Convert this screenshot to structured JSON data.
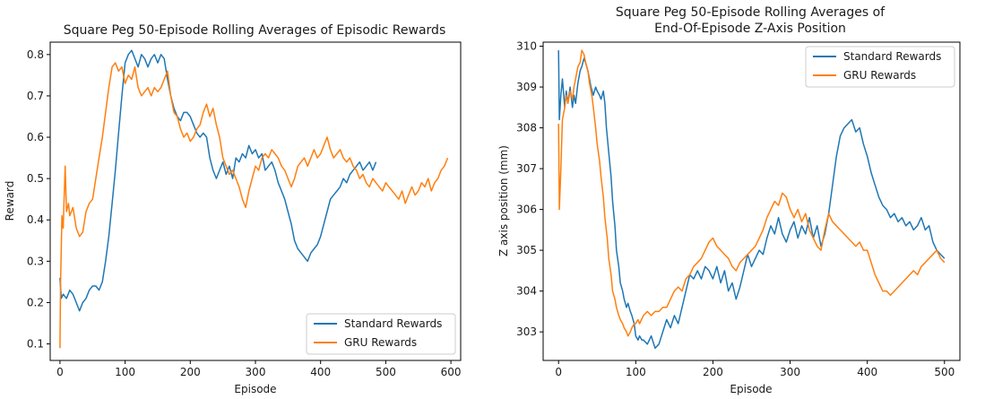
{
  "chart_data": [
    {
      "type": "line",
      "title": "Square Peg 50-Episode Rolling Averages of Episodic Rewards",
      "xlabel": "Episode",
      "ylabel": "Reward",
      "xlim": [
        -15,
        615
      ],
      "ylim": [
        0.06,
        0.83
      ],
      "xticks": [
        0,
        100,
        200,
        300,
        400,
        500,
        600
      ],
      "yticks": [
        0.1,
        0.2,
        0.3,
        0.4,
        0.5,
        0.6,
        0.7,
        0.8
      ],
      "ytick_decimals": 1,
      "legend": "lower-right",
      "grid": false,
      "series": [
        {
          "name": "Standard Rewards",
          "color": "#1f77b4",
          "x": [
            0,
            2,
            5,
            10,
            15,
            20,
            25,
            30,
            35,
            40,
            45,
            50,
            55,
            60,
            65,
            70,
            75,
            80,
            85,
            90,
            95,
            100,
            105,
            110,
            115,
            120,
            125,
            130,
            135,
            140,
            145,
            150,
            155,
            160,
            165,
            170,
            175,
            180,
            185,
            190,
            195,
            200,
            205,
            210,
            215,
            220,
            225,
            230,
            235,
            240,
            245,
            250,
            255,
            260,
            265,
            270,
            275,
            280,
            285,
            290,
            295,
            300,
            305,
            310,
            315,
            320,
            325,
            330,
            335,
            340,
            345,
            350,
            355,
            360,
            365,
            370,
            375,
            380,
            385,
            390,
            395,
            400,
            405,
            410,
            415,
            420,
            425,
            430,
            435,
            440,
            445,
            450,
            455,
            460,
            465,
            470,
            475,
            480,
            485
          ],
          "y": [
            0.26,
            0.21,
            0.22,
            0.21,
            0.23,
            0.22,
            0.2,
            0.18,
            0.2,
            0.21,
            0.23,
            0.24,
            0.24,
            0.23,
            0.25,
            0.3,
            0.36,
            0.44,
            0.52,
            0.61,
            0.7,
            0.78,
            0.8,
            0.81,
            0.79,
            0.77,
            0.8,
            0.79,
            0.77,
            0.79,
            0.8,
            0.78,
            0.8,
            0.79,
            0.74,
            0.7,
            0.67,
            0.65,
            0.64,
            0.66,
            0.66,
            0.65,
            0.63,
            0.61,
            0.6,
            0.61,
            0.6,
            0.55,
            0.52,
            0.5,
            0.52,
            0.54,
            0.51,
            0.53,
            0.5,
            0.55,
            0.54,
            0.56,
            0.55,
            0.58,
            0.56,
            0.57,
            0.55,
            0.56,
            0.52,
            0.53,
            0.54,
            0.52,
            0.49,
            0.47,
            0.45,
            0.42,
            0.39,
            0.35,
            0.33,
            0.32,
            0.31,
            0.3,
            0.32,
            0.33,
            0.34,
            0.36,
            0.39,
            0.42,
            0.45,
            0.46,
            0.47,
            0.48,
            0.5,
            0.49,
            0.51,
            0.52,
            0.53,
            0.54,
            0.52,
            0.53,
            0.54,
            0.52,
            0.54
          ]
        },
        {
          "name": "GRU Rewards",
          "color": "#ff7f0e",
          "x": [
            0,
            1,
            3,
            5,
            8,
            10,
            13,
            15,
            20,
            25,
            30,
            35,
            40,
            45,
            50,
            55,
            60,
            65,
            70,
            75,
            80,
            85,
            90,
            95,
            100,
            105,
            110,
            115,
            120,
            125,
            130,
            135,
            140,
            145,
            150,
            155,
            160,
            165,
            170,
            175,
            180,
            185,
            190,
            195,
            200,
            205,
            210,
            215,
            220,
            225,
            230,
            235,
            240,
            245,
            250,
            255,
            260,
            265,
            270,
            275,
            280,
            285,
            290,
            295,
            300,
            305,
            310,
            315,
            320,
            325,
            330,
            335,
            340,
            345,
            350,
            355,
            360,
            365,
            370,
            375,
            380,
            385,
            390,
            395,
            400,
            405,
            410,
            415,
            420,
            425,
            430,
            435,
            440,
            445,
            450,
            455,
            460,
            465,
            470,
            475,
            480,
            485,
            490,
            495,
            500,
            505,
            510,
            515,
            520,
            525,
            530,
            535,
            540,
            545,
            550,
            555,
            560,
            565,
            570,
            575,
            580,
            585,
            590,
            595
          ],
          "y": [
            0.09,
            0.25,
            0.41,
            0.38,
            0.53,
            0.42,
            0.44,
            0.41,
            0.43,
            0.38,
            0.36,
            0.37,
            0.42,
            0.44,
            0.45,
            0.5,
            0.55,
            0.6,
            0.66,
            0.72,
            0.77,
            0.78,
            0.76,
            0.77,
            0.73,
            0.75,
            0.74,
            0.77,
            0.72,
            0.7,
            0.71,
            0.72,
            0.7,
            0.72,
            0.71,
            0.72,
            0.74,
            0.76,
            0.7,
            0.66,
            0.65,
            0.62,
            0.6,
            0.61,
            0.59,
            0.6,
            0.62,
            0.63,
            0.66,
            0.68,
            0.65,
            0.67,
            0.63,
            0.6,
            0.55,
            0.53,
            0.51,
            0.52,
            0.5,
            0.48,
            0.45,
            0.43,
            0.47,
            0.5,
            0.53,
            0.52,
            0.55,
            0.56,
            0.55,
            0.57,
            0.56,
            0.55,
            0.53,
            0.52,
            0.5,
            0.48,
            0.5,
            0.53,
            0.54,
            0.55,
            0.53,
            0.55,
            0.57,
            0.55,
            0.56,
            0.58,
            0.6,
            0.57,
            0.55,
            0.56,
            0.57,
            0.55,
            0.54,
            0.55,
            0.53,
            0.52,
            0.5,
            0.51,
            0.49,
            0.48,
            0.5,
            0.49,
            0.48,
            0.47,
            0.49,
            0.48,
            0.47,
            0.46,
            0.45,
            0.47,
            0.44,
            0.46,
            0.48,
            0.46,
            0.47,
            0.49,
            0.48,
            0.5,
            0.47,
            0.49,
            0.5,
            0.52,
            0.53,
            0.55
          ]
        }
      ]
    },
    {
      "type": "line",
      "title": "Square Peg  50-Episode Rolling Averages of End-Of-Episode Z-Axis Position",
      "title_lines": [
        "Square Peg  50-Episode Rolling Averages of",
        "End-Of-Episode Z-Axis Position"
      ],
      "xlabel": "Episode",
      "ylabel": "Z axis position (mm)",
      "xlim": [
        -20,
        520
      ],
      "ylim": [
        302.3,
        310.1
      ],
      "xticks": [
        0,
        100,
        200,
        300,
        400,
        500
      ],
      "yticks": [
        303,
        304,
        305,
        306,
        307,
        308,
        309,
        310
      ],
      "ytick_decimals": 0,
      "legend": "top-right",
      "grid": false,
      "series": [
        {
          "name": "Standard Rewards",
          "color": "#1f77b4",
          "x": [
            0,
            1,
            3,
            5,
            8,
            10,
            12,
            15,
            18,
            20,
            22,
            25,
            28,
            30,
            33,
            35,
            38,
            40,
            42,
            45,
            48,
            50,
            53,
            55,
            58,
            60,
            62,
            65,
            68,
            70,
            73,
            75,
            78,
            80,
            83,
            85,
            88,
            90,
            93,
            95,
            98,
            100,
            103,
            105,
            108,
            110,
            115,
            120,
            125,
            130,
            135,
            140,
            145,
            150,
            155,
            160,
            165,
            170,
            175,
            180,
            185,
            190,
            195,
            200,
            205,
            210,
            215,
            220,
            225,
            230,
            235,
            240,
            245,
            250,
            255,
            260,
            265,
            270,
            275,
            280,
            285,
            290,
            295,
            300,
            305,
            310,
            315,
            320,
            325,
            330,
            335,
            340,
            345,
            350,
            355,
            360,
            365,
            370,
            375,
            380,
            385,
            390,
            395,
            400,
            405,
            410,
            415,
            420,
            425,
            430,
            435,
            440,
            445,
            450,
            455,
            460,
            465,
            470,
            475,
            480,
            485,
            490,
            495,
            500
          ],
          "y": [
            309.9,
            308.2,
            308.8,
            309.2,
            308.5,
            308.9,
            308.6,
            309.0,
            308.5,
            308.8,
            308.6,
            309.1,
            309.4,
            309.5,
            309.7,
            309.6,
            309.4,
            309.2,
            309.0,
            308.8,
            309.0,
            308.9,
            308.8,
            308.7,
            308.9,
            308.6,
            308.0,
            307.4,
            306.8,
            306.2,
            305.6,
            305.0,
            304.6,
            304.2,
            304.0,
            303.8,
            303.6,
            303.7,
            303.5,
            303.4,
            303.2,
            302.9,
            302.8,
            302.9,
            302.8,
            302.8,
            302.7,
            302.9,
            302.6,
            302.7,
            303.0,
            303.3,
            303.1,
            303.4,
            303.2,
            303.6,
            304.0,
            304.4,
            304.3,
            304.5,
            304.3,
            304.6,
            304.5,
            304.3,
            304.6,
            304.2,
            304.5,
            304.0,
            304.2,
            303.8,
            304.1,
            304.5,
            304.9,
            304.6,
            304.8,
            305.0,
            304.9,
            305.3,
            305.6,
            305.4,
            305.8,
            305.4,
            305.2,
            305.5,
            305.7,
            305.3,
            305.6,
            305.4,
            305.8,
            305.3,
            305.6,
            305.1,
            305.4,
            305.9,
            306.6,
            307.3,
            307.8,
            308.0,
            308.1,
            308.2,
            307.9,
            308.0,
            307.6,
            307.3,
            306.9,
            306.6,
            306.3,
            306.1,
            306.0,
            305.8,
            305.9,
            305.7,
            305.8,
            305.6,
            305.7,
            305.5,
            305.6,
            305.8,
            305.5,
            305.6,
            305.2,
            305.0,
            304.9,
            304.8
          ]
        },
        {
          "name": "GRU Rewards",
          "color": "#ff7f0e",
          "x": [
            0,
            1,
            3,
            5,
            8,
            10,
            12,
            15,
            18,
            20,
            22,
            25,
            28,
            30,
            33,
            35,
            38,
            40,
            43,
            45,
            48,
            50,
            53,
            55,
            58,
            60,
            63,
            65,
            68,
            70,
            73,
            75,
            78,
            80,
            83,
            85,
            88,
            90,
            93,
            95,
            98,
            100,
            103,
            105,
            110,
            115,
            120,
            125,
            130,
            135,
            140,
            145,
            150,
            155,
            160,
            165,
            170,
            175,
            180,
            185,
            190,
            195,
            200,
            205,
            210,
            215,
            220,
            225,
            230,
            235,
            240,
            245,
            250,
            255,
            260,
            265,
            270,
            275,
            280,
            285,
            290,
            295,
            300,
            305,
            310,
            315,
            320,
            325,
            330,
            335,
            340,
            345,
            350,
            355,
            360,
            365,
            370,
            375,
            380,
            385,
            390,
            395,
            400,
            405,
            410,
            415,
            420,
            425,
            430,
            435,
            440,
            445,
            450,
            455,
            460,
            465,
            470,
            475,
            480,
            485,
            490,
            495,
            500
          ],
          "y": [
            308.1,
            306.0,
            307.0,
            308.2,
            308.5,
            308.8,
            308.6,
            308.9,
            308.7,
            309.0,
            309.2,
            309.5,
            309.6,
            309.9,
            309.8,
            309.6,
            309.4,
            309.1,
            308.8,
            308.5,
            308.0,
            307.6,
            307.2,
            306.8,
            306.3,
            305.8,
            305.3,
            304.8,
            304.4,
            304.0,
            303.8,
            303.6,
            303.4,
            303.3,
            303.2,
            303.1,
            303.0,
            302.9,
            303.0,
            303.1,
            303.2,
            303.2,
            303.3,
            303.2,
            303.4,
            303.5,
            303.4,
            303.5,
            303.5,
            303.6,
            303.6,
            303.8,
            304.0,
            304.1,
            304.0,
            304.3,
            304.4,
            304.6,
            304.7,
            304.8,
            305.0,
            305.2,
            305.3,
            305.1,
            305.0,
            304.9,
            304.8,
            304.6,
            304.5,
            304.7,
            304.8,
            304.9,
            305.0,
            305.1,
            305.3,
            305.5,
            305.8,
            306.0,
            306.2,
            306.1,
            306.4,
            306.3,
            306.0,
            305.8,
            306.0,
            305.7,
            305.9,
            305.5,
            305.3,
            305.1,
            305.0,
            305.5,
            305.9,
            305.7,
            305.6,
            305.5,
            305.4,
            305.3,
            305.2,
            305.1,
            305.2,
            305.0,
            305.0,
            304.7,
            304.4,
            304.2,
            304.0,
            304.0,
            303.9,
            304.0,
            304.1,
            304.2,
            304.3,
            304.4,
            304.5,
            304.4,
            304.6,
            304.7,
            304.8,
            304.9,
            305.0,
            304.8,
            304.7
          ]
        }
      ]
    }
  ]
}
